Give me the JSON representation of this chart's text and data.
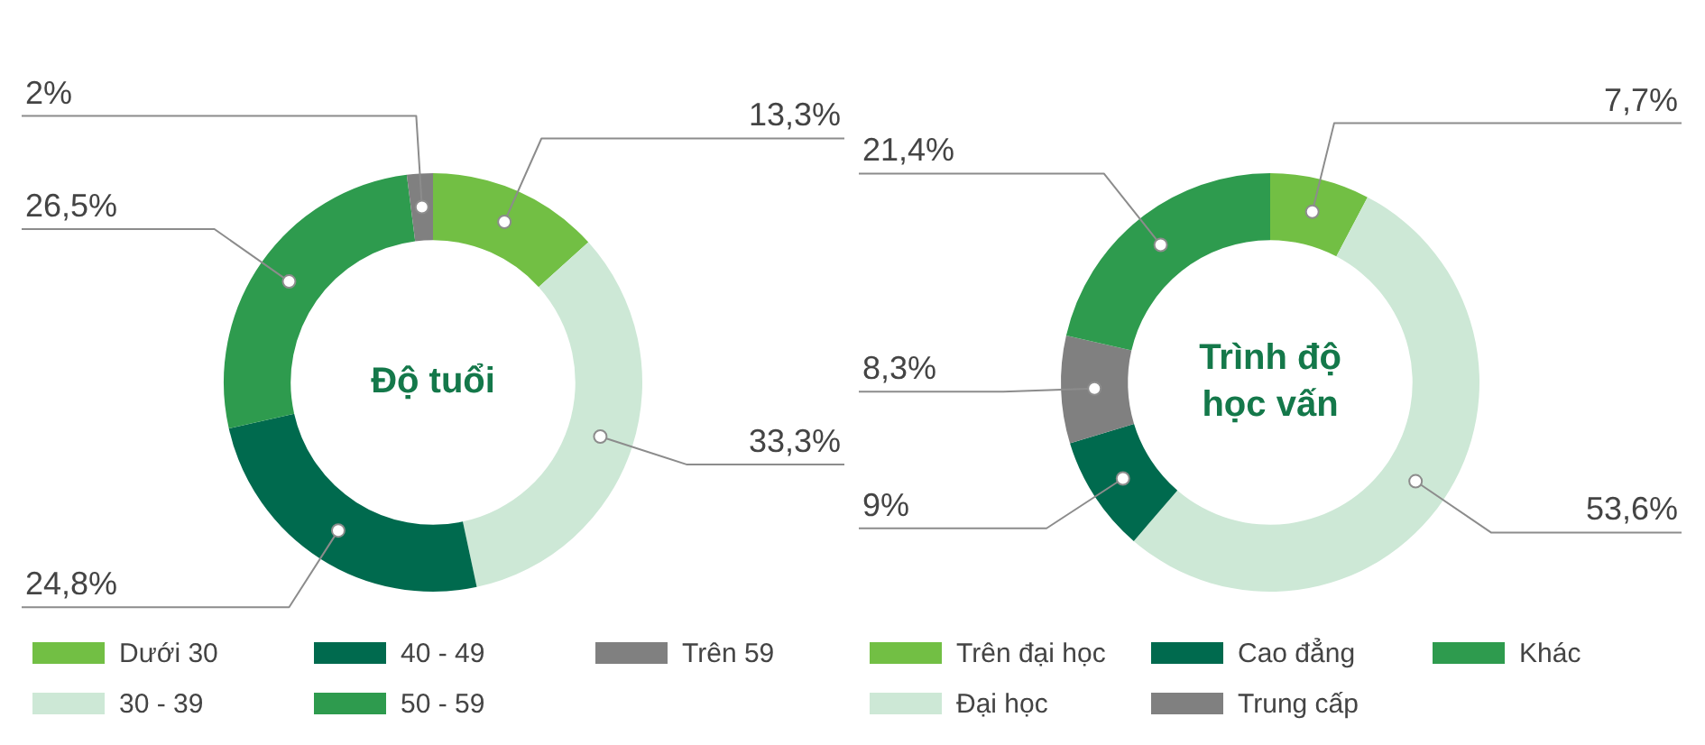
{
  "chart_data": [
    {
      "type": "donut",
      "title": "Độ tuổi",
      "categories": [
        "Dưới 30",
        "30 - 39",
        "40 - 49",
        "50 - 59",
        "Trên 59"
      ],
      "values": [
        13.3,
        33.3,
        24.8,
        26.5,
        2
      ],
      "colors": [
        "#72bf44",
        "#cde8d6",
        "#006a4e",
        "#2e9b4e",
        "#808080"
      ],
      "value_labels": [
        "13,3%",
        "33,3%",
        "24,8%",
        "26,5%",
        "2%"
      ],
      "legend": "bottom"
    },
    {
      "type": "donut",
      "title": "Trình độ học vấn",
      "categories": [
        "Trên đại học",
        "Đại học",
        "Cao đẳng",
        "Trung cấp",
        "Khác"
      ],
      "values": [
        7.7,
        53.6,
        9,
        8.3,
        21.4
      ],
      "colors": [
        "#72bf44",
        "#cde8d6",
        "#006a4e",
        "#808080",
        "#2e9b4e"
      ],
      "value_labels": [
        "7,7%",
        "53,6%",
        "9%",
        "8,3%",
        "21,4%"
      ],
      "legend": "bottom"
    }
  ]
}
